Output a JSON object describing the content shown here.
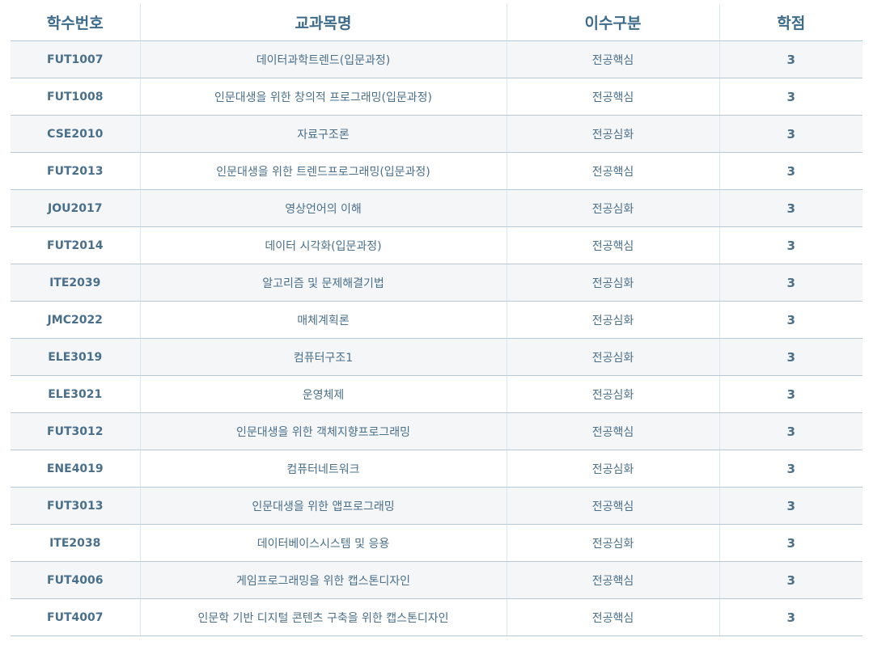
{
  "headers": [
    "학수번호",
    "교과목명",
    "이수구분",
    "학점"
  ],
  "rows": [
    {
      "code": "FUT1007",
      "name": "데이터과학트렌드(입문과정)",
      "category": "전공핵심",
      "credit": "3"
    },
    {
      "code": "FUT1008",
      "name": "인문대생을 위한 창의적 프로그래밍(입문과정)",
      "category": "전공핵심",
      "credit": "3"
    },
    {
      "code": "CSE2010",
      "name": "자료구조론",
      "category": "전공심화",
      "credit": "3"
    },
    {
      "code": "FUT2013",
      "name": "인문대생을 위한 트렌드프로그래밍(입문과정)",
      "category": "전공핵심",
      "credit": "3"
    },
    {
      "code": "JOU2017",
      "name": "영상언어의 이해",
      "category": "전공심화",
      "credit": "3"
    },
    {
      "code": "FUT2014",
      "name": "데이터 시각화(입문과정)",
      "category": "전공핵심",
      "credit": "3"
    },
    {
      "code": "ITE2039",
      "name": "알고리즘 및 문제해결기법",
      "category": "전공심화",
      "credit": "3"
    },
    {
      "code": "JMC2022",
      "name": "매체계획론",
      "category": "전공심화",
      "credit": "3"
    },
    {
      "code": "ELE3019",
      "name": "컴퓨터구조1",
      "category": "전공심화",
      "credit": "3"
    },
    {
      "code": "ELE3021",
      "name": "운영체제",
      "category": "전공심화",
      "credit": "3"
    },
    {
      "code": "FUT3012",
      "name": "인문대생을 위한 객체지향프로그래밍",
      "category": "전공핵심",
      "credit": "3"
    },
    {
      "code": "ENE4019",
      "name": "컴퓨터네트워크",
      "category": "전공심화",
      "credit": "3"
    },
    {
      "code": "FUT3013",
      "name": "인문대생을 위한 앱프로그래밍",
      "category": "전공핵심",
      "credit": "3"
    },
    {
      "code": "ITE2038",
      "name": "데이터베이스시스템 및 응용",
      "category": "전공심화",
      "credit": "3"
    },
    {
      "code": "FUT4006",
      "name": "게임프로그래밍을 위한 캡스톤디자인",
      "category": "전공핵심",
      "credit": "3"
    },
    {
      "code": "FUT4007",
      "name": "인문학 기반 디지털 콘텐츠 구축을 위한 캡스톤디자인",
      "category": "전공핵심",
      "credit": "3"
    }
  ]
}
